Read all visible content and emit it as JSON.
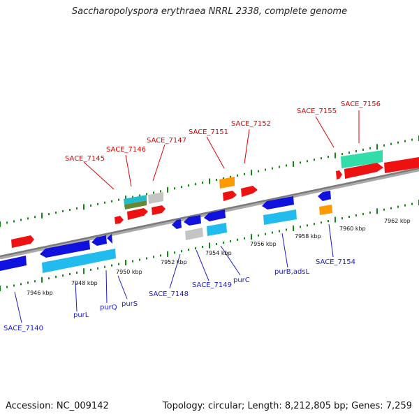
{
  "title": "Saccharopolyspora erythraea NRRL 2338, complete genome",
  "accession_label": "Accession: NC_009142",
  "summary_label": "Topology: circular; Length: 8,212,805 bp; Genes: 7,259",
  "colors": {
    "forward_gene": "#ee1111",
    "reverse_gene": "#1111dd",
    "reverse_rna_like": "#22bbee",
    "orange_feature": "#ff9900",
    "gray_feature": "#c4c4c4",
    "teal_feature": "#33ccaa",
    "olive_feature": "#668833",
    "forward_label": "#e00000",
    "reverse_label": "#1a1acc"
  },
  "kbp_ticks": [
    "7946 kbp",
    "7948 kbp",
    "7950 kbp",
    "7952 kbp",
    "7954 kbp",
    "7956 kbp",
    "7958 kbp",
    "7960 kbp",
    "7962 kbp"
  ],
  "forward_labels": [
    "SACE_7145",
    "SACE_7146",
    "SACE_7147",
    "SACE_7151",
    "SACE_7152",
    "SACE_7155",
    "SACE_7156"
  ],
  "reverse_labels": [
    "SACE_7140",
    "purL",
    "purQ",
    "purS",
    "SACE_7148",
    "SACE_7149",
    "purC",
    "purB,adsL",
    "SACE_7154"
  ]
}
